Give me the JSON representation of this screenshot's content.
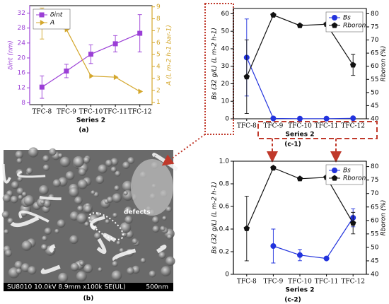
{
  "chart_data": [
    {
      "type": "line",
      "label": "(a)",
      "xlabel": "Series 2",
      "ylabel": "δint (nm)",
      "y2label": "A (L m-2 h-1 bar-1)",
      "categories": [
        "TFC-8",
        "TFC-9",
        "TFC-10",
        "TFC-11",
        "TFC-12"
      ],
      "ylim": [
        7.5,
        34
      ],
      "yticks": [
        8,
        12,
        16,
        20,
        24,
        28,
        32
      ],
      "y2lim": [
        0.8,
        9.1
      ],
      "y2ticks": [
        1,
        2,
        3,
        4,
        5,
        6,
        7,
        8,
        9
      ],
      "color_axes": true,
      "legend": "upper left",
      "series": [
        {
          "name": "δint",
          "color": "#9b3fd6",
          "marker": "square",
          "values": [
            12.2,
            16.5,
            21,
            23.8,
            26.6
          ],
          "errors": [
            3,
            1.8,
            2.5,
            2.2,
            5
          ]
        },
        {
          "name": "A",
          "color": "#d4a72c",
          "marker": "triangle",
          "axis": "y2",
          "values": [
            7.6,
            7.1,
            3.2,
            3.1,
            1.9
          ],
          "errors": [
            1.3,
            0,
            0,
            0,
            0
          ]
        }
      ]
    },
    {
      "type": "line",
      "label": "(c-1)",
      "xlabel": "Series 2",
      "ylabel": "Bs (32 g/L) (L m-2 h-1)",
      "y2label": "Rboron (%)",
      "categories": [
        "TFC-8",
        "TFC-9",
        "TFC-10",
        "TFC-11",
        "TFC-12"
      ],
      "ylim": [
        0,
        63
      ],
      "yticks": [
        0,
        10,
        20,
        30,
        40,
        50,
        60
      ],
      "y2lim": [
        40,
        82
      ],
      "y2ticks": [
        40,
        45,
        50,
        55,
        60,
        65,
        70,
        75,
        80
      ],
      "color_axes": false,
      "legend": "upper right",
      "series": [
        {
          "name": "Bs",
          "color": "#2233dd",
          "marker": "circle",
          "values": [
            35,
            0.2,
            0.1,
            0.1,
            0.3
          ],
          "errors": [
            22,
            0,
            0,
            0,
            0
          ]
        },
        {
          "name": "Rboron",
          "color": "#111111",
          "marker": "pentagon",
          "axis": "y2",
          "values": [
            56,
            79.5,
            75.5,
            76,
            60.5
          ],
          "errors": [
            14,
            0.5,
            0.5,
            0.5,
            4
          ]
        }
      ]
    },
    {
      "type": "line",
      "label": "(c-2)",
      "xlabel": "Series 2",
      "ylabel": "Bs (32 g/L) (L m-2 h-1)",
      "y2label": "Rboron (%)",
      "categories": [
        "TFC-8",
        "TFC-9",
        "TFC-10",
        "TFC-11",
        "TFC-12"
      ],
      "ylim": [
        0,
        1
      ],
      "yticks": [
        0,
        0.2,
        0.4,
        0.6,
        0.8,
        {
          "value": 1,
          "label": "1.0"
        }
      ],
      "y2lim": [
        40,
        82
      ],
      "y2ticks": [
        40,
        45,
        50,
        55,
        60,
        65,
        70,
        75,
        80
      ],
      "color_axes": false,
      "legend": "upper right",
      "series": [
        {
          "name": "Bs",
          "color": "#2233dd",
          "marker": "circle",
          "values": [
            null,
            0.25,
            0.17,
            0.14,
            0.5
          ],
          "errors": [
            null,
            0.15,
            0.05,
            0.01,
            0.08
          ]
        },
        {
          "name": "Rboron",
          "color": "#111111",
          "marker": "pentagon",
          "axis": "y2",
          "values": [
            57,
            79.5,
            75.5,
            76,
            59
          ],
          "errors": [
            12,
            0.5,
            0.5,
            0.5,
            4
          ]
        }
      ]
    }
  ],
  "image": {
    "label": "(b)",
    "annotation": "defects",
    "info": "SU8010 10.0kV 8.9mm x100k SE(UL)",
    "scale": "500nm"
  }
}
